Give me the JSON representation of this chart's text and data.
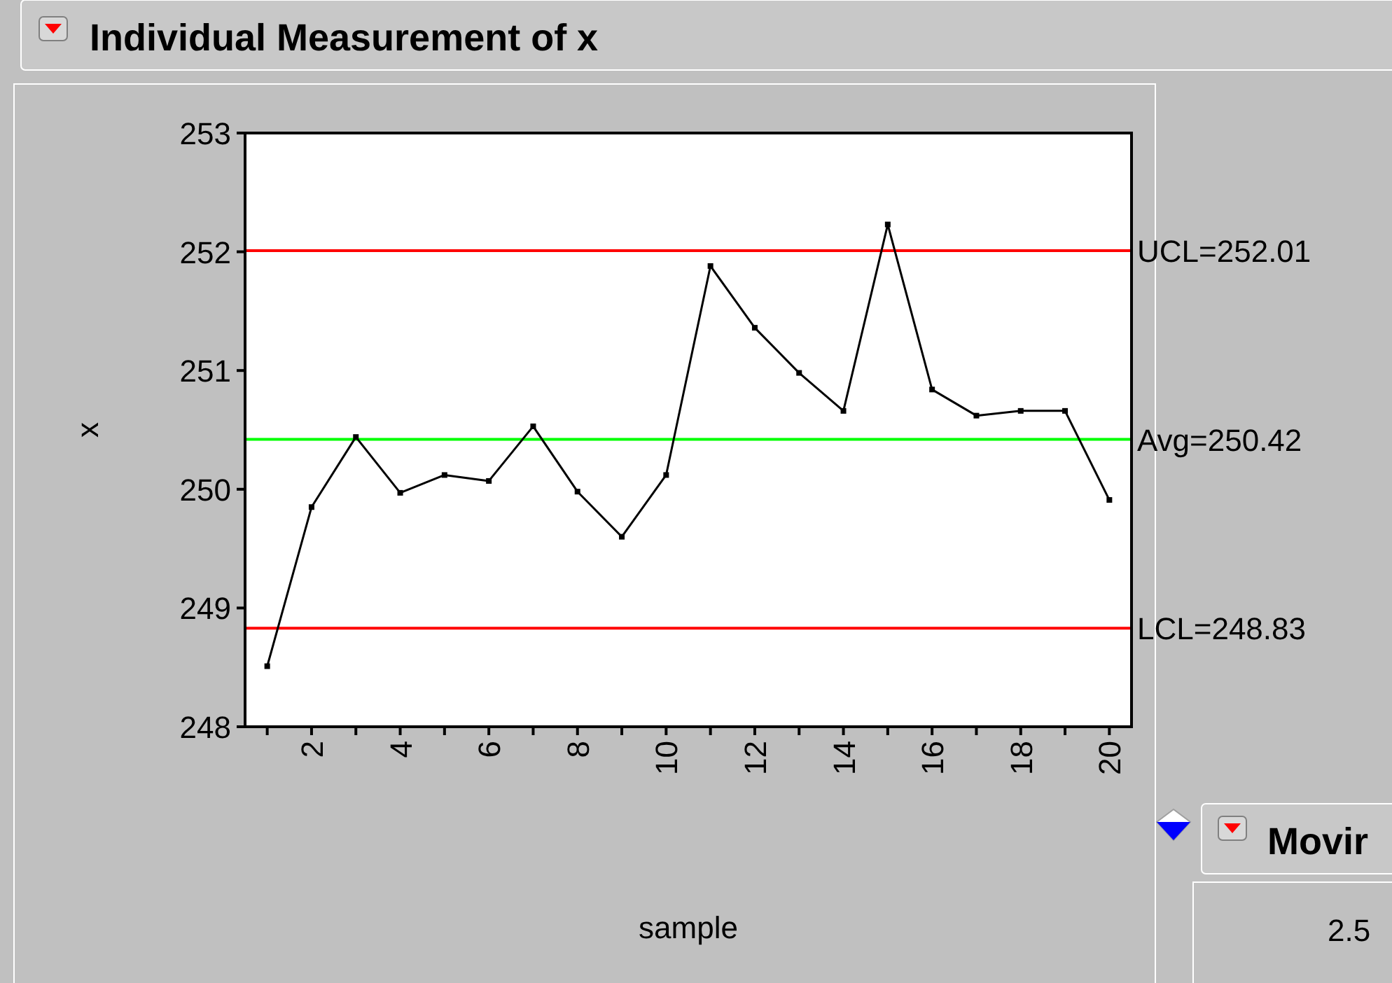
{
  "chart_data": {
    "type": "line",
    "title": "Individual Measurement of x",
    "xlabel": "sample",
    "ylabel": "x",
    "x": [
      1,
      2,
      3,
      4,
      5,
      6,
      7,
      8,
      9,
      10,
      11,
      12,
      13,
      14,
      15,
      16,
      17,
      18,
      19,
      20
    ],
    "series": [
      {
        "color": "#000000",
        "values": [
          248.51,
          249.85,
          250.44,
          249.97,
          250.12,
          250.07,
          250.53,
          249.98,
          249.6,
          250.12,
          251.88,
          251.36,
          250.98,
          250.66,
          252.23,
          250.84,
          250.62,
          250.66,
          250.66,
          249.91
        ]
      }
    ],
    "xlim": [
      0.5,
      20.5
    ],
    "xticks": [
      {
        "value": 1,
        "label": null
      },
      2,
      {
        "value": 3,
        "label": null
      },
      4,
      {
        "value": 5,
        "label": null
      },
      6,
      {
        "value": 7,
        "label": null
      },
      8,
      {
        "value": 9,
        "label": null
      },
      10,
      {
        "value": 11,
        "label": null
      },
      12,
      {
        "value": 13,
        "label": null
      },
      14,
      {
        "value": 15,
        "label": null
      },
      16,
      {
        "value": 17,
        "label": null
      },
      18,
      {
        "value": 19,
        "label": null
      },
      20
    ],
    "ylim": [
      248,
      253
    ],
    "yticks": [
      248,
      249,
      250,
      251,
      252,
      253
    ],
    "ref_lines": [
      {
        "axis": "y",
        "value": 252.01,
        "label": "UCL=252.01",
        "color": "#ff0000"
      },
      {
        "axis": "y",
        "value": 250.42,
        "label": "Avg=250.42",
        "color": "#00ff00"
      },
      {
        "axis": "y",
        "value": 248.83,
        "label": "LCL=248.83",
        "color": "#ff0000"
      }
    ],
    "marker": "square",
    "line_style": "solid",
    "grid": false,
    "annotations": [
      "Movir",
      "2.5"
    ]
  }
}
